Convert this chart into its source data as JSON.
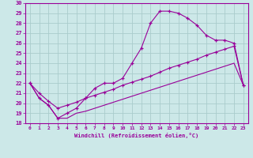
{
  "xlabel": "Windchill (Refroidissement éolien,°C)",
  "bg_color": "#cce8e8",
  "line_color": "#990099",
  "grid_color": "#aacccc",
  "xlim": [
    -0.5,
    23.5
  ],
  "ylim": [
    18,
    30
  ],
  "xticks": [
    0,
    1,
    2,
    3,
    4,
    5,
    6,
    7,
    8,
    9,
    10,
    11,
    12,
    13,
    14,
    15,
    16,
    17,
    18,
    19,
    20,
    21,
    22,
    23
  ],
  "yticks": [
    18,
    19,
    20,
    21,
    22,
    23,
    24,
    25,
    26,
    27,
    28,
    29,
    30
  ],
  "line1_x": [
    0,
    1,
    2,
    3,
    4,
    5,
    6,
    7,
    8,
    9,
    10,
    11,
    12,
    13,
    14,
    15,
    16,
    17,
    18,
    19,
    20,
    21,
    22,
    23
  ],
  "line1_y": [
    22,
    20.5,
    19.8,
    18.5,
    19.0,
    19.5,
    20.5,
    21.5,
    22.0,
    22.0,
    22.5,
    24.0,
    25.5,
    28.0,
    29.2,
    29.2,
    29.0,
    28.5,
    27.8,
    26.8,
    26.3,
    26.3,
    26.0,
    21.8
  ],
  "line2_x": [
    0,
    1,
    2,
    3,
    4,
    5,
    6,
    7,
    8,
    9,
    10,
    11,
    12,
    13,
    14,
    15,
    16,
    17,
    18,
    19,
    20,
    21,
    22,
    23
  ],
  "line2_y": [
    22,
    21.0,
    20.2,
    19.5,
    19.8,
    20.1,
    20.5,
    20.8,
    21.1,
    21.4,
    21.8,
    22.1,
    22.4,
    22.7,
    23.1,
    23.5,
    23.8,
    24.1,
    24.4,
    24.8,
    25.1,
    25.4,
    25.7,
    21.8
  ],
  "line3_x": [
    0,
    1,
    2,
    3,
    4,
    5,
    6,
    7,
    8,
    9,
    10,
    11,
    12,
    13,
    14,
    15,
    16,
    17,
    18,
    19,
    20,
    21,
    22,
    23
  ],
  "line3_y": [
    22,
    20.5,
    19.8,
    18.5,
    18.5,
    19.0,
    19.2,
    19.5,
    19.8,
    20.1,
    20.4,
    20.7,
    21.0,
    21.3,
    21.6,
    21.9,
    22.2,
    22.5,
    22.8,
    23.1,
    23.4,
    23.7,
    24.0,
    21.8
  ]
}
